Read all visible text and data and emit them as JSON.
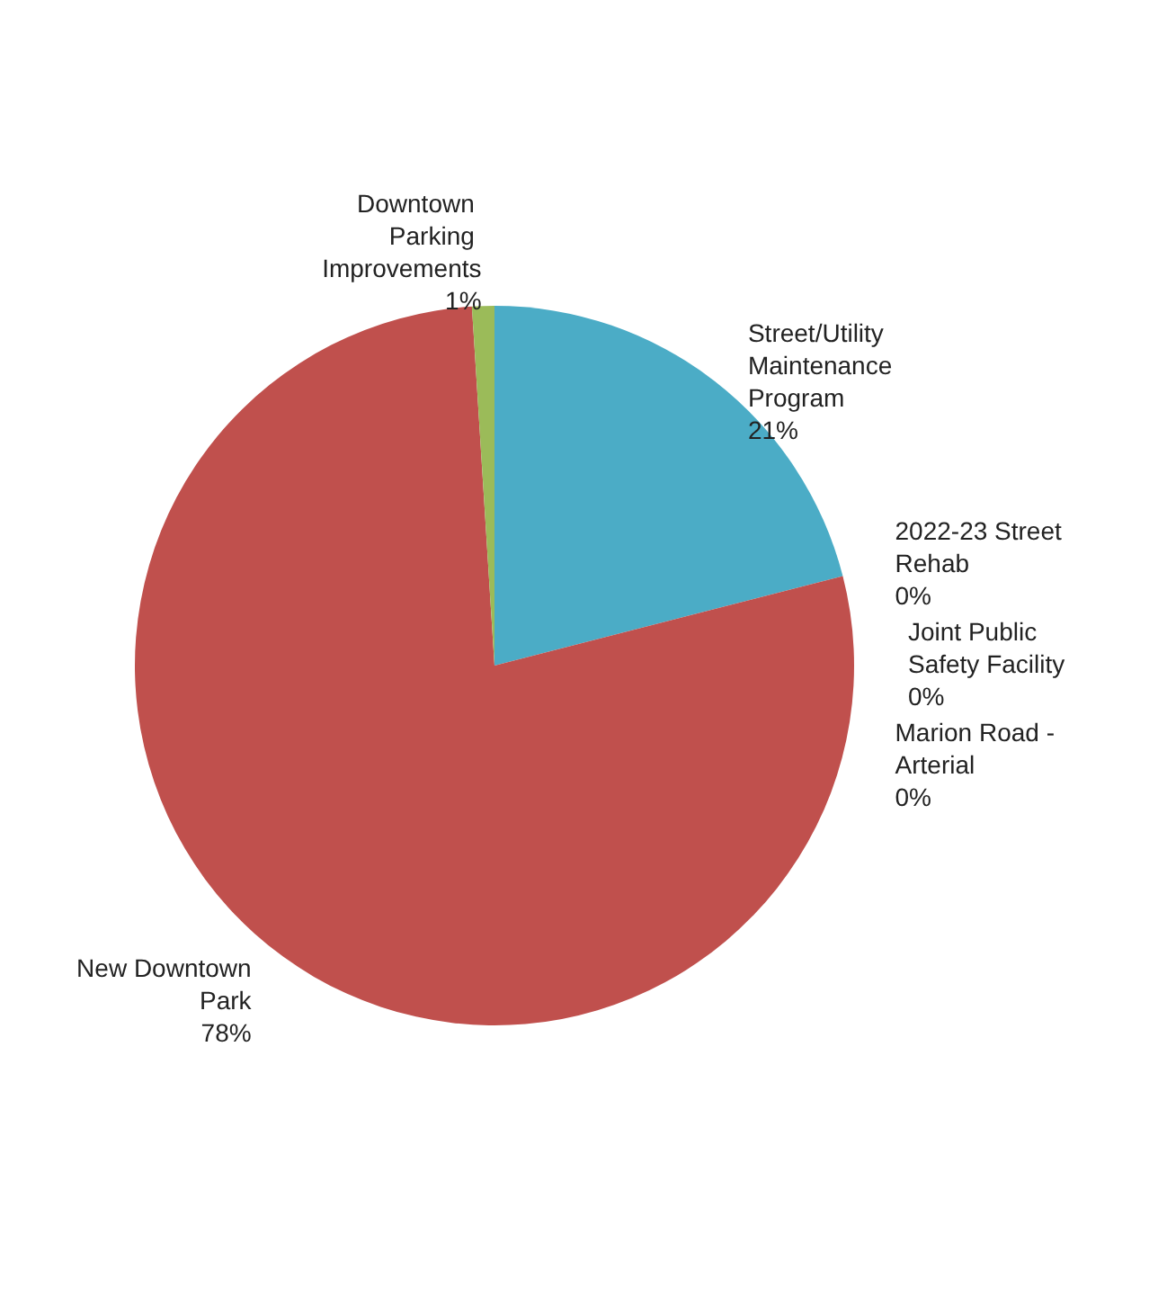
{
  "chart_data": {
    "type": "pie",
    "categories": [
      "Street/Utility Maintenance Program",
      "2022-23 Street Rehab",
      "Joint Public Safety Facility",
      "Marion Road - Arterial",
      "New Downtown Park",
      "Downtown Parking Improvements"
    ],
    "values": [
      21,
      0,
      0,
      0,
      78,
      1
    ],
    "value_labels": [
      "21%",
      "0%",
      "0%",
      "0%",
      "78%",
      "1%"
    ],
    "colors": [
      "#4bacc6",
      "#f79646",
      "#8064a2",
      "#4f81bd",
      "#c0504d",
      "#9bbb59"
    ],
    "legend": false
  }
}
